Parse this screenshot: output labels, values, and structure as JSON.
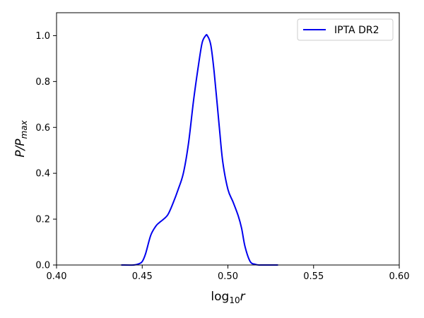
{
  "chart_data": {
    "type": "line",
    "xlabel": {
      "base": "log",
      "sub": "10",
      "var": "r"
    },
    "ylabel": {
      "main": "P/P",
      "sub": "max"
    },
    "xlim": [
      0.4,
      0.6
    ],
    "ylim": [
      0.0,
      1.1
    ],
    "xticks": [
      0.4,
      0.45,
      0.5,
      0.55,
      0.6
    ],
    "xtick_labels": [
      "0.40",
      "0.45",
      "0.50",
      "0.55",
      "0.60"
    ],
    "yticks": [
      0.0,
      0.2,
      0.4,
      0.6,
      0.8,
      1.0
    ],
    "ytick_labels": [
      "0.0",
      "0.2",
      "0.4",
      "0.6",
      "0.8",
      "1.0"
    ],
    "grid": false,
    "legend": {
      "position": "upper-right"
    },
    "series": [
      {
        "name": "IPTA DR2",
        "color": "#0000ee",
        "x": [
          0.438,
          0.445,
          0.448,
          0.45,
          0.452,
          0.455,
          0.458,
          0.46,
          0.462,
          0.465,
          0.468,
          0.471,
          0.474,
          0.477,
          0.48,
          0.483,
          0.485,
          0.487,
          0.488,
          0.49,
          0.492,
          0.495,
          0.497,
          0.5,
          0.503,
          0.506,
          0.508,
          0.51,
          0.513,
          0.516,
          0.518,
          0.52,
          0.529
        ],
        "y": [
          0.0,
          0.0,
          0.005,
          0.015,
          0.05,
          0.13,
          0.17,
          0.185,
          0.197,
          0.22,
          0.27,
          0.33,
          0.4,
          0.53,
          0.72,
          0.88,
          0.97,
          1.0,
          1.0,
          0.96,
          0.84,
          0.6,
          0.45,
          0.33,
          0.275,
          0.215,
          0.16,
          0.08,
          0.015,
          0.003,
          0.0,
          0.0,
          0.0
        ]
      }
    ]
  }
}
